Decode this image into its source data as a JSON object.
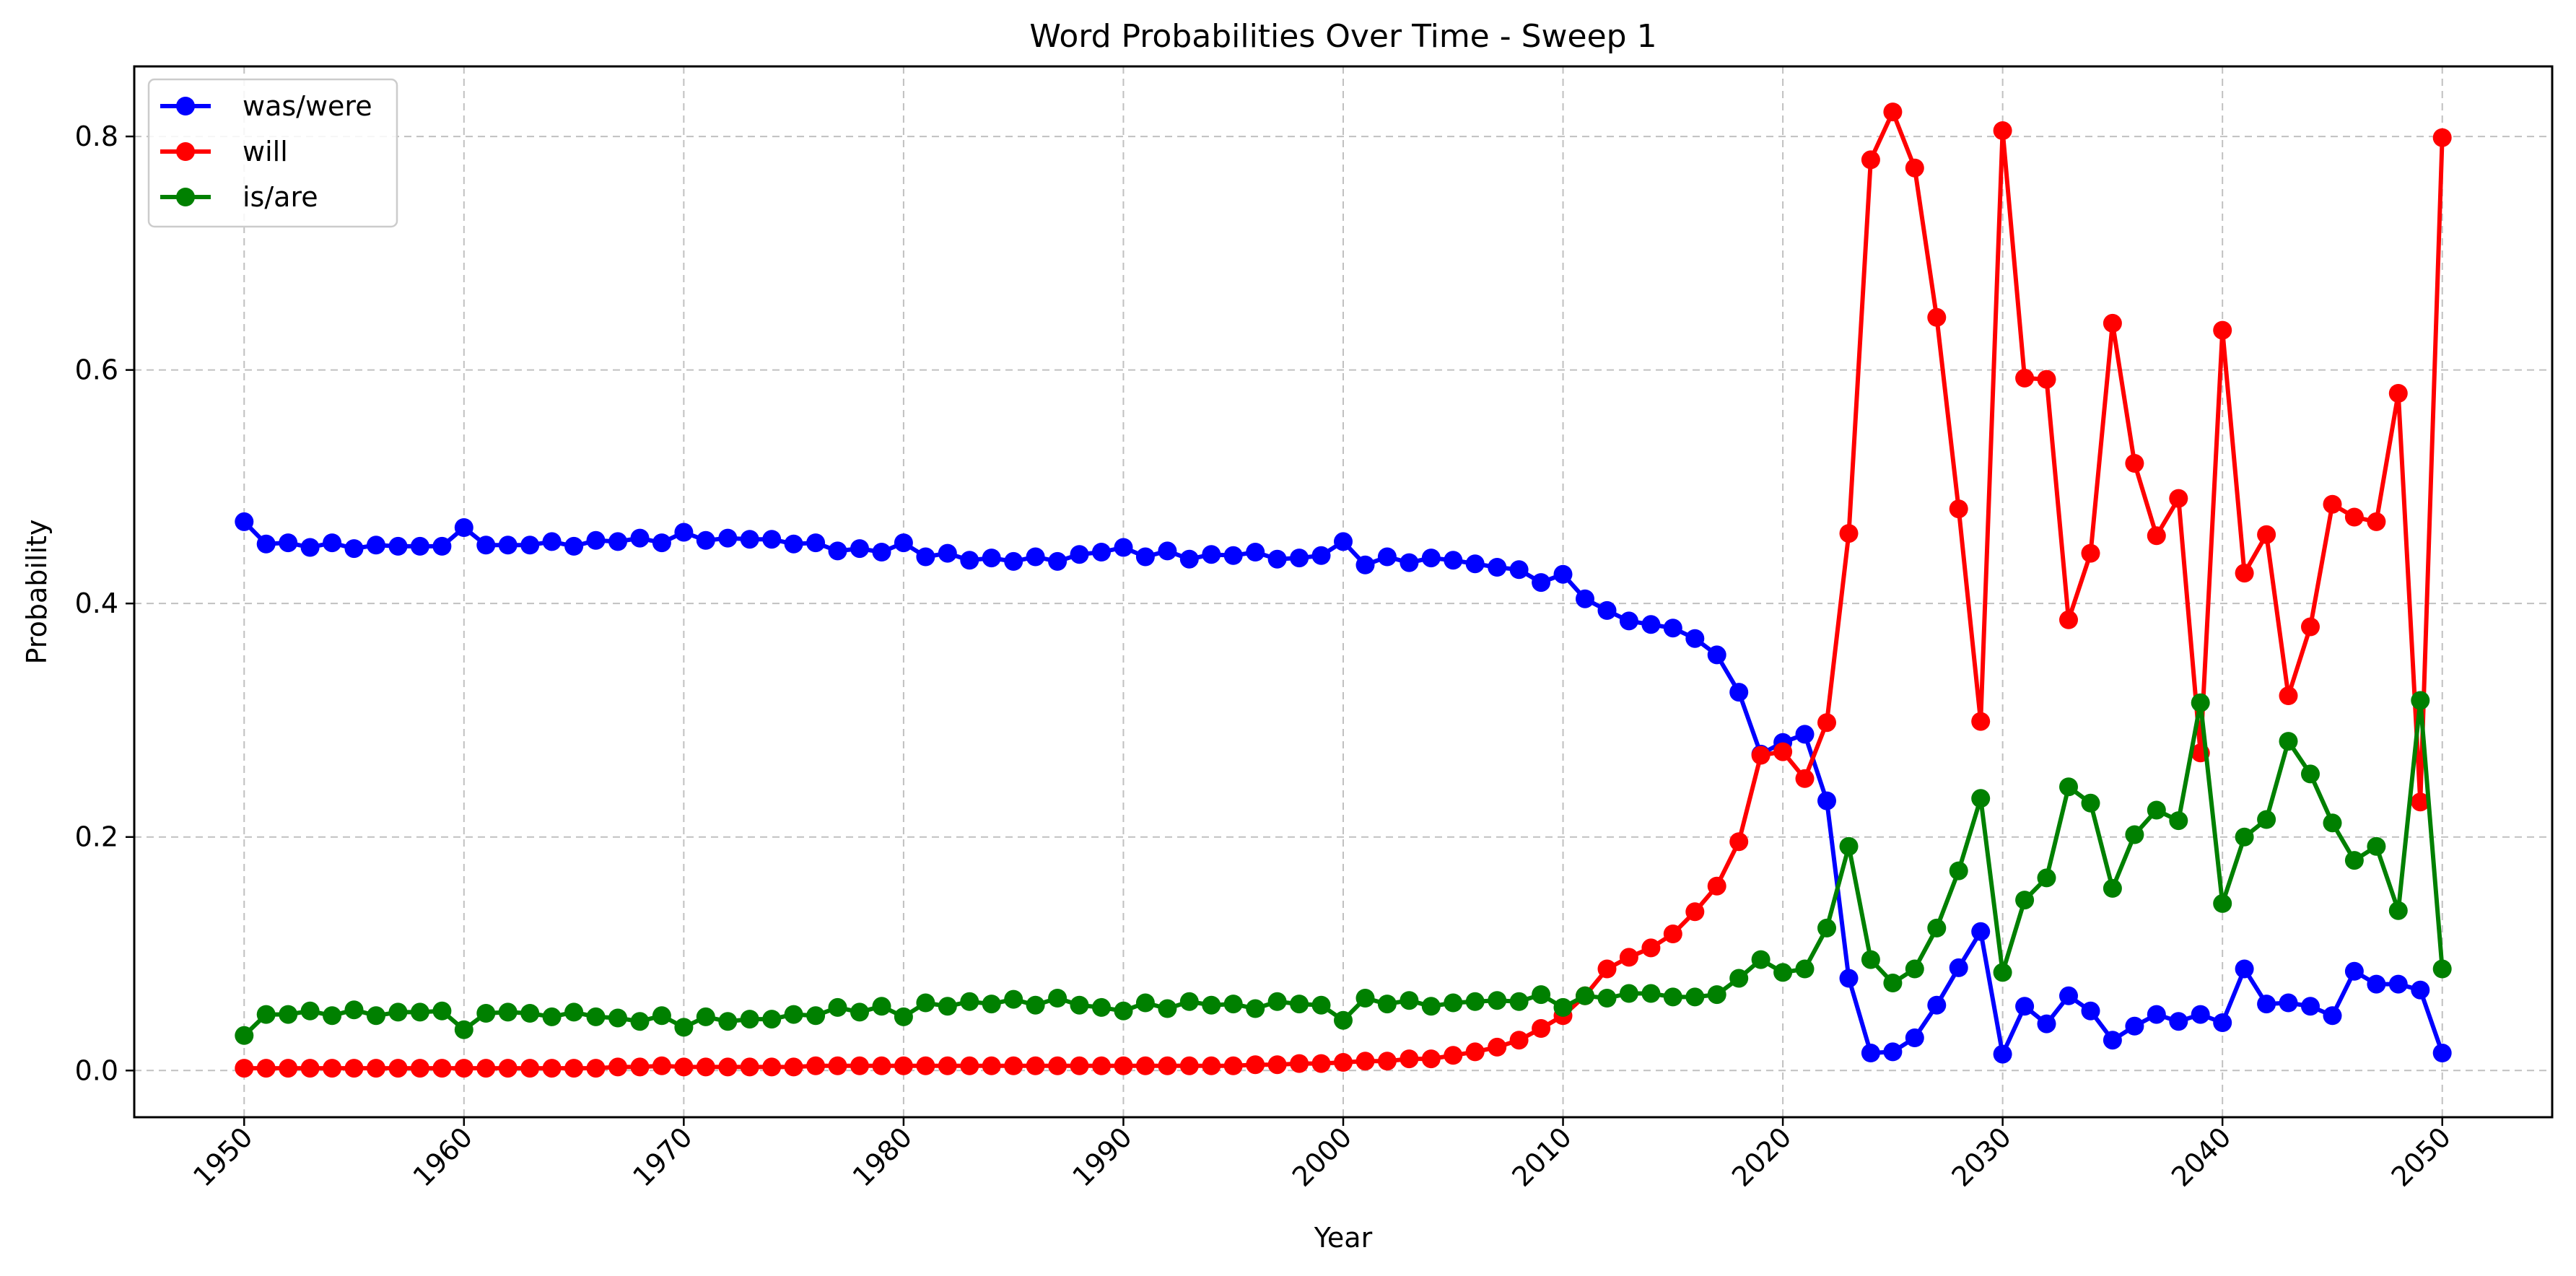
{
  "chart_data": {
    "type": "line",
    "title": "Word Probabilities Over Time - Sweep 1",
    "xlabel": "Year",
    "ylabel": "Probability",
    "xlim": [
      1945,
      2055
    ],
    "ylim": [
      -0.04,
      0.86
    ],
    "xticks": [
      1950,
      1960,
      1970,
      1980,
      1990,
      2000,
      2010,
      2020,
      2030,
      2040,
      2050
    ],
    "yticks": [
      0.0,
      0.2,
      0.4,
      0.6,
      0.8
    ],
    "ytick_labels": [
      "0.0",
      "0.2",
      "0.4",
      "0.6",
      "0.8"
    ],
    "grid": true,
    "legend_position": "top-left",
    "x_start": 1950,
    "x_end": 2050,
    "series": [
      {
        "name": "was/were",
        "color": "#0000ff",
        "values": [
          0.47,
          0.451,
          0.452,
          0.448,
          0.452,
          0.447,
          0.45,
          0.449,
          0.449,
          0.449,
          0.465,
          0.45,
          0.45,
          0.45,
          0.453,
          0.449,
          0.454,
          0.453,
          0.456,
          0.452,
          0.461,
          0.454,
          0.456,
          0.455,
          0.455,
          0.451,
          0.452,
          0.445,
          0.447,
          0.444,
          0.452,
          0.44,
          0.443,
          0.437,
          0.439,
          0.436,
          0.44,
          0.436,
          0.442,
          0.444,
          0.448,
          0.44,
          0.445,
          0.438,
          0.442,
          0.441,
          0.444,
          0.438,
          0.439,
          0.441,
          0.453,
          0.433,
          0.44,
          0.435,
          0.439,
          0.437,
          0.434,
          0.431,
          0.429,
          0.418,
          0.425,
          0.404,
          0.394,
          0.385,
          0.382,
          0.379,
          0.37,
          0.356,
          0.324,
          0.271,
          0.281,
          0.288,
          0.231,
          0.079,
          0.015,
          0.016,
          0.028,
          0.056,
          0.088,
          0.119,
          0.014,
          0.055,
          0.04,
          0.064,
          0.051,
          0.026,
          0.038,
          0.048,
          0.042,
          0.048,
          0.041,
          0.087,
          0.057,
          0.058,
          0.055,
          0.047,
          0.085,
          0.074,
          0.074,
          0.069,
          0.015
        ]
      },
      {
        "name": "will",
        "color": "#ff0000",
        "values": [
          0.002,
          0.002,
          0.002,
          0.002,
          0.002,
          0.002,
          0.002,
          0.002,
          0.002,
          0.002,
          0.002,
          0.002,
          0.002,
          0.002,
          0.002,
          0.002,
          0.002,
          0.003,
          0.003,
          0.004,
          0.003,
          0.003,
          0.003,
          0.003,
          0.003,
          0.003,
          0.004,
          0.004,
          0.004,
          0.004,
          0.004,
          0.004,
          0.004,
          0.004,
          0.004,
          0.004,
          0.004,
          0.004,
          0.004,
          0.004,
          0.004,
          0.004,
          0.004,
          0.004,
          0.004,
          0.004,
          0.005,
          0.005,
          0.006,
          0.006,
          0.007,
          0.008,
          0.008,
          0.01,
          0.01,
          0.013,
          0.016,
          0.02,
          0.026,
          0.036,
          0.047,
          0.064,
          0.087,
          0.097,
          0.105,
          0.117,
          0.136,
          0.158,
          0.196,
          0.27,
          0.273,
          0.25,
          0.298,
          0.46,
          0.78,
          0.821,
          0.773,
          0.645,
          0.481,
          0.299,
          0.805,
          0.593,
          0.592,
          0.386,
          0.443,
          0.64,
          0.52,
          0.458,
          0.49,
          0.272,
          0.634,
          0.426,
          0.459,
          0.321,
          0.38,
          0.485,
          0.474,
          0.47,
          0.58,
          0.23,
          0.799
        ]
      },
      {
        "name": "is/are",
        "color": "#008000",
        "values": [
          0.03,
          0.048,
          0.048,
          0.051,
          0.047,
          0.052,
          0.047,
          0.05,
          0.05,
          0.051,
          0.035,
          0.049,
          0.05,
          0.049,
          0.046,
          0.05,
          0.046,
          0.045,
          0.042,
          0.047,
          0.037,
          0.046,
          0.042,
          0.044,
          0.044,
          0.048,
          0.047,
          0.054,
          0.05,
          0.055,
          0.046,
          0.058,
          0.055,
          0.059,
          0.057,
          0.061,
          0.056,
          0.062,
          0.056,
          0.054,
          0.051,
          0.058,
          0.053,
          0.059,
          0.056,
          0.057,
          0.053,
          0.059,
          0.057,
          0.056,
          0.043,
          0.062,
          0.057,
          0.06,
          0.055,
          0.058,
          0.059,
          0.06,
          0.059,
          0.065,
          0.054,
          0.064,
          0.062,
          0.066,
          0.066,
          0.063,
          0.063,
          0.065,
          0.079,
          0.095,
          0.084,
          0.087,
          0.122,
          0.192,
          0.095,
          0.075,
          0.087,
          0.122,
          0.171,
          0.233,
          0.084,
          0.146,
          0.165,
          0.243,
          0.229,
          0.156,
          0.202,
          0.223,
          0.214,
          0.315,
          0.143,
          0.2,
          0.215,
          0.282,
          0.254,
          0.212,
          0.18,
          0.192,
          0.137,
          0.317,
          0.087
        ]
      }
    ]
  }
}
